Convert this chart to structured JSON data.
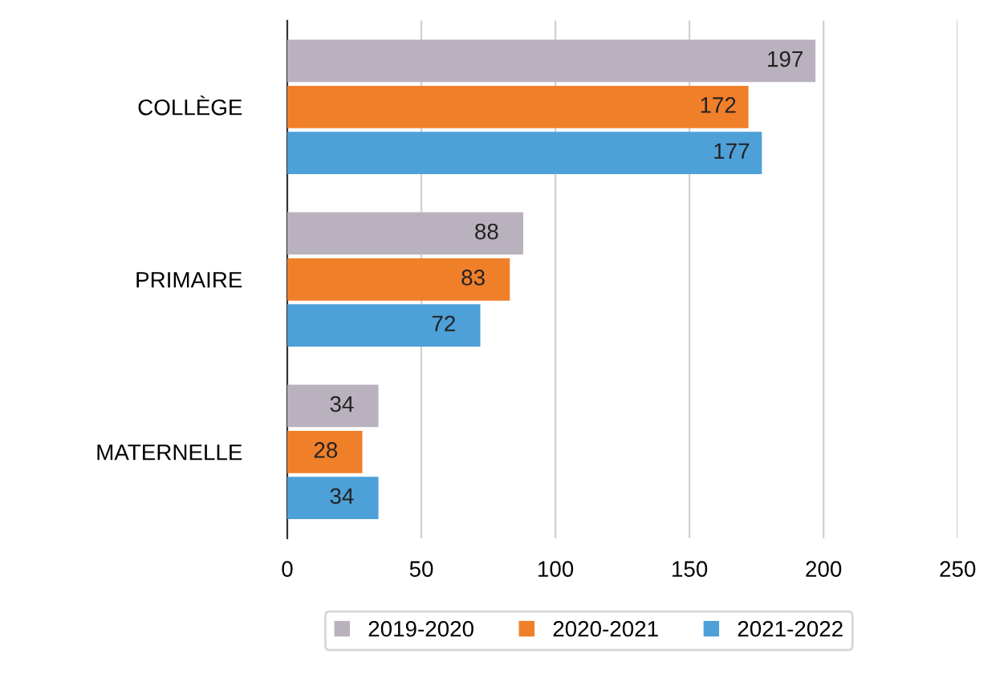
{
  "chart_data": {
    "type": "bar",
    "orientation": "horizontal",
    "categories": [
      "COLLÈGE",
      "PRIMAIRE",
      "MATERNELLE"
    ],
    "series": [
      {
        "name": "2019-2020",
        "color": "#b9b1bd",
        "values": [
          197,
          88,
          34
        ]
      },
      {
        "name": "2020-2021",
        "color": "#f07f2a",
        "values": [
          172,
          83,
          28
        ]
      },
      {
        "name": "2021-2022",
        "color": "#4ea0d8",
        "values": [
          177,
          72,
          34
        ]
      }
    ],
    "xlim": [
      0,
      250
    ],
    "xticks": [
      0,
      50,
      100,
      150,
      200,
      250
    ],
    "grid": "x",
    "legend": "bottom",
    "data_labels": true
  }
}
